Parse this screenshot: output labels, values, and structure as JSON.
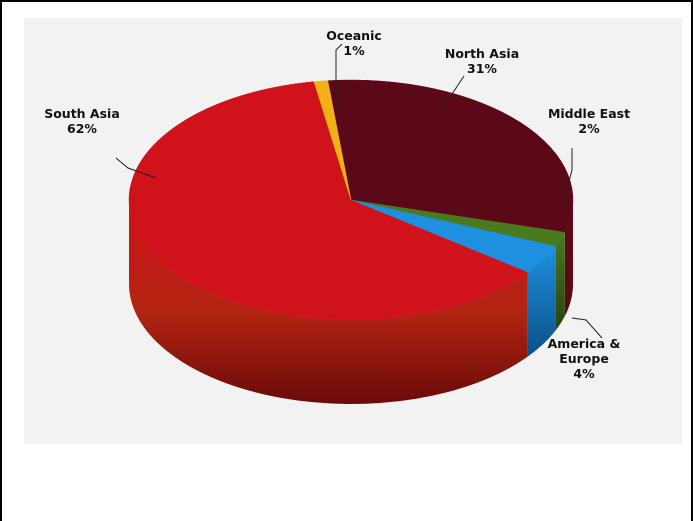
{
  "chart_data": {
    "type": "pie",
    "title": "",
    "slices": [
      {
        "label": "North Asia",
        "value": 31,
        "value_label": "31%",
        "color": "#5b0818"
      },
      {
        "label": "Middle East",
        "value": 2,
        "value_label": "2%",
        "color": "#4a7a1e"
      },
      {
        "label": "America & Europe",
        "value": 4,
        "value_label": "4%",
        "color": "#1f8fe0"
      },
      {
        "label": "South Asia",
        "value": 62,
        "value_label": "62%",
        "color": "#d0131a"
      },
      {
        "label": "Oceanic",
        "value": 1,
        "value_label": "1%",
        "color": "#f2b117"
      }
    ],
    "legend": "none",
    "style": "3d-pie"
  }
}
